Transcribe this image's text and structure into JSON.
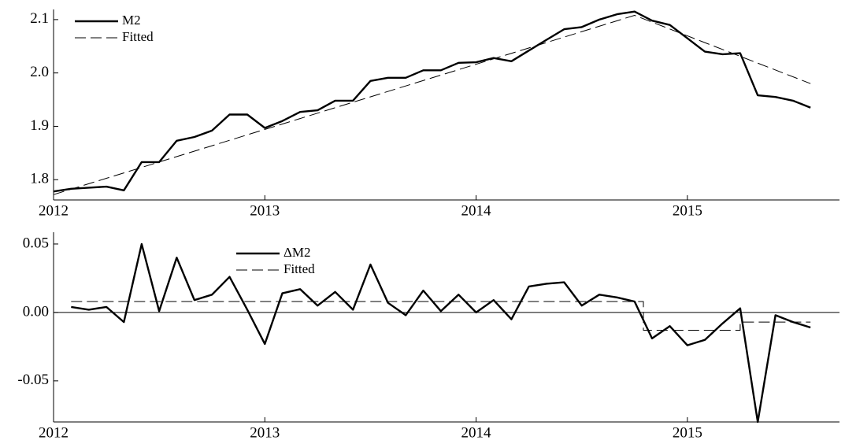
{
  "chart_data": [
    {
      "type": "line",
      "xlim": [
        2012,
        2015.72
      ],
      "xticks": [
        2012,
        2013,
        2014,
        2015
      ],
      "ylim": [
        1.762,
        2.119
      ],
      "yticks": [
        1.8,
        1.9,
        {
          "value": 2,
          "label": "2.0"
        },
        2.1
      ],
      "grid": false,
      "zero_line": false,
      "legend": "upper left",
      "series": [
        {
          "name": "M2",
          "color": "#000000",
          "dashed": false,
          "x": [
            2012,
            2012.083,
            2012.167,
            2012.25,
            2012.333,
            2012.417,
            2012.5,
            2012.583,
            2012.667,
            2012.75,
            2012.833,
            2012.917,
            2013,
            2013.083,
            2013.167,
            2013.25,
            2013.333,
            2013.417,
            2013.5,
            2013.583,
            2013.667,
            2013.75,
            2013.833,
            2013.917,
            2014,
            2014.083,
            2014.167,
            2014.25,
            2014.333,
            2014.417,
            2014.5,
            2014.583,
            2014.667,
            2014.75,
            2014.833,
            2014.917,
            2015,
            2015.083,
            2015.167,
            2015.25,
            2015.333,
            2015.417,
            2015.5,
            2015.583
          ],
          "values": [
            1.778,
            1.783,
            1.785,
            1.787,
            1.78,
            1.833,
            1.833,
            1.873,
            1.88,
            1.892,
            1.922,
            1.922,
            1.897,
            1.91,
            1.927,
            1.93,
            1.948,
            1.948,
            1.985,
            1.991,
            1.991,
            2.005,
            2.005,
            2.019,
            2.02,
            2.028,
            2.022,
            2.042,
            2.062,
            2.082,
            2.086,
            2.1,
            2.11,
            2.115,
            2.098,
            2.09,
            2.065,
            2.04,
            2.035,
            2.037,
            1.958,
            1.955,
            1.948,
            1.935
          ]
        },
        {
          "name": "Fitted",
          "color": "#000000",
          "dashed": true,
          "x": [
            2012,
            2014.75,
            2015.583
          ],
          "values": [
            1.772,
            2.108,
            1.98
          ]
        }
      ]
    },
    {
      "type": "line",
      "xlim": [
        2012,
        2015.72
      ],
      "xticks": [
        2012,
        2013,
        2014,
        2015
      ],
      "ylim": [
        -0.08,
        0.0586
      ],
      "yticks": [
        0.05,
        {
          "value": 0,
          "label": "0.00"
        },
        -0.05
      ],
      "grid": false,
      "zero_line": true,
      "legend": "upper center",
      "series": [
        {
          "name": "ΔM2",
          "color": "#000000",
          "dashed": false,
          "x": [
            2012.083,
            2012.167,
            2012.25,
            2012.333,
            2012.417,
            2012.5,
            2012.583,
            2012.667,
            2012.75,
            2012.833,
            2012.917,
            2013,
            2013.083,
            2013.167,
            2013.25,
            2013.333,
            2013.417,
            2013.5,
            2013.583,
            2013.667,
            2013.75,
            2013.833,
            2013.917,
            2014,
            2014.083,
            2014.167,
            2014.25,
            2014.333,
            2014.417,
            2014.5,
            2014.583,
            2014.667,
            2014.75,
            2014.833,
            2014.917,
            2015,
            2015.083,
            2015.167,
            2015.25,
            2015.333,
            2015.417,
            2015.5,
            2015.583
          ],
          "values": [
            0.004,
            0.002,
            0.004,
            -0.007,
            0.05,
            0.001,
            0.04,
            0.009,
            0.013,
            0.026,
            0.002,
            -0.023,
            0.014,
            0.017,
            0.005,
            0.015,
            0.002,
            0.035,
            0.007,
            -0.002,
            0.016,
            0.001,
            0.013,
            0.0,
            0.009,
            -0.005,
            0.019,
            0.021,
            0.022,
            0.005,
            0.013,
            0.011,
            0.008,
            -0.019,
            -0.01,
            -0.024,
            -0.02,
            -0.008,
            0.003,
            -0.08,
            -0.002,
            -0.007,
            -0.011
          ]
        },
        {
          "name": "Fitted",
          "color": "#000000",
          "dashed": true,
          "x": [
            2012.083,
            2014.792,
            2014.792,
            2015.25,
            2015.25,
            2015.583
          ],
          "values": [
            0.008,
            0.008,
            -0.013,
            -0.013,
            -0.007,
            -0.007
          ]
        }
      ]
    }
  ]
}
